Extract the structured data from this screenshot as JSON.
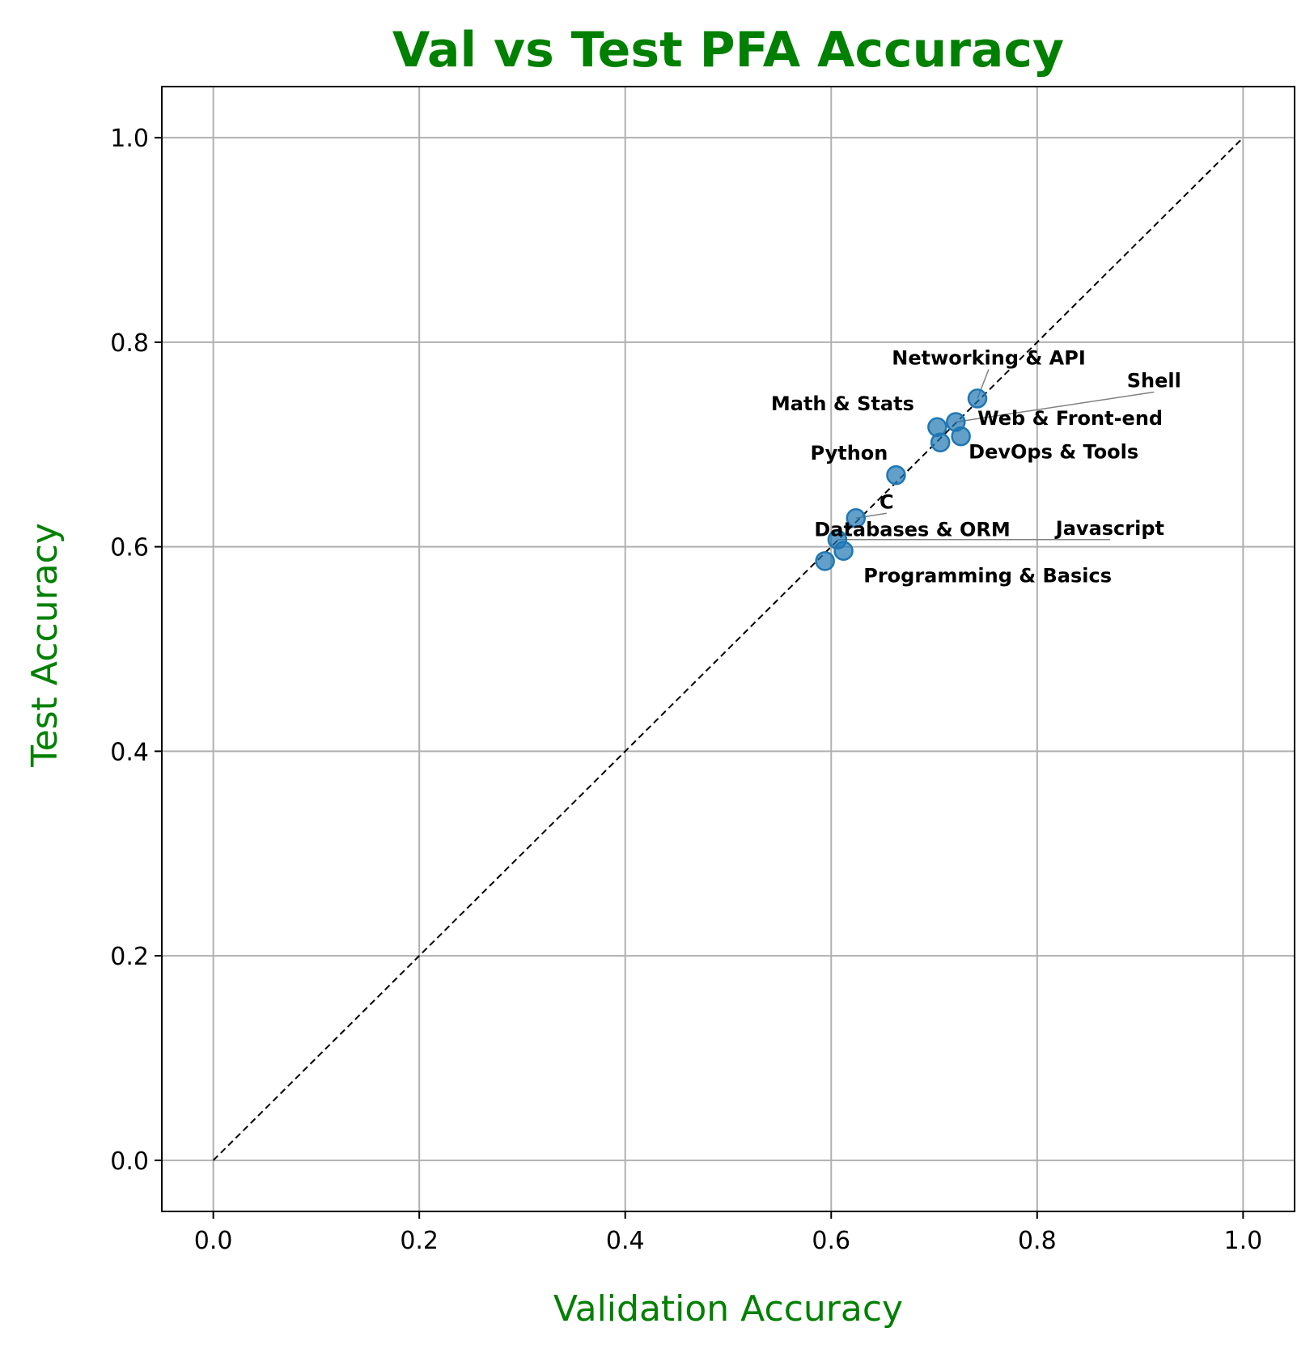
{
  "chart_data": {
    "type": "scatter",
    "title": "Val vs Test PFA Accuracy",
    "xlabel": "Validation Accuracy",
    "ylabel": "Test Accuracy",
    "xlim": [
      -0.05,
      1.05
    ],
    "ylim": [
      -0.05,
      1.05
    ],
    "xticks": [
      "0.0",
      "0.2",
      "0.4",
      "0.6",
      "0.8",
      "1.0"
    ],
    "yticks": [
      "0.0",
      "0.2",
      "0.4",
      "0.6",
      "0.8",
      "1.0"
    ],
    "grid": true,
    "reference_line": {
      "from": [
        0,
        0
      ],
      "to": [
        1,
        1
      ],
      "style": "dashed"
    },
    "colors": {
      "title": "#008000",
      "axis_label": "#008000",
      "points": "#1f77b4",
      "reference_line": "#000000",
      "grid": "#b0b0b0",
      "leader_line": "#808080"
    },
    "points": [
      {
        "label": "Networking & API",
        "x": 0.742,
        "y": 0.745
      },
      {
        "label": "Shell",
        "x": 0.721,
        "y": 0.722
      },
      {
        "label": "Math & Stats",
        "x": 0.703,
        "y": 0.717
      },
      {
        "label": "Web & Front-end",
        "x": 0.726,
        "y": 0.708
      },
      {
        "label": "DevOps & Tools",
        "x": 0.706,
        "y": 0.702
      },
      {
        "label": "Python",
        "x": 0.663,
        "y": 0.67
      },
      {
        "label": "C",
        "x": 0.624,
        "y": 0.628
      },
      {
        "label": "Javascript",
        "x": 0.606,
        "y": 0.607
      },
      {
        "label": "Databases & ORM",
        "x": 0.612,
        "y": 0.596
      },
      {
        "label": "Programming & Basics",
        "x": 0.594,
        "y": 0.586
      }
    ]
  }
}
